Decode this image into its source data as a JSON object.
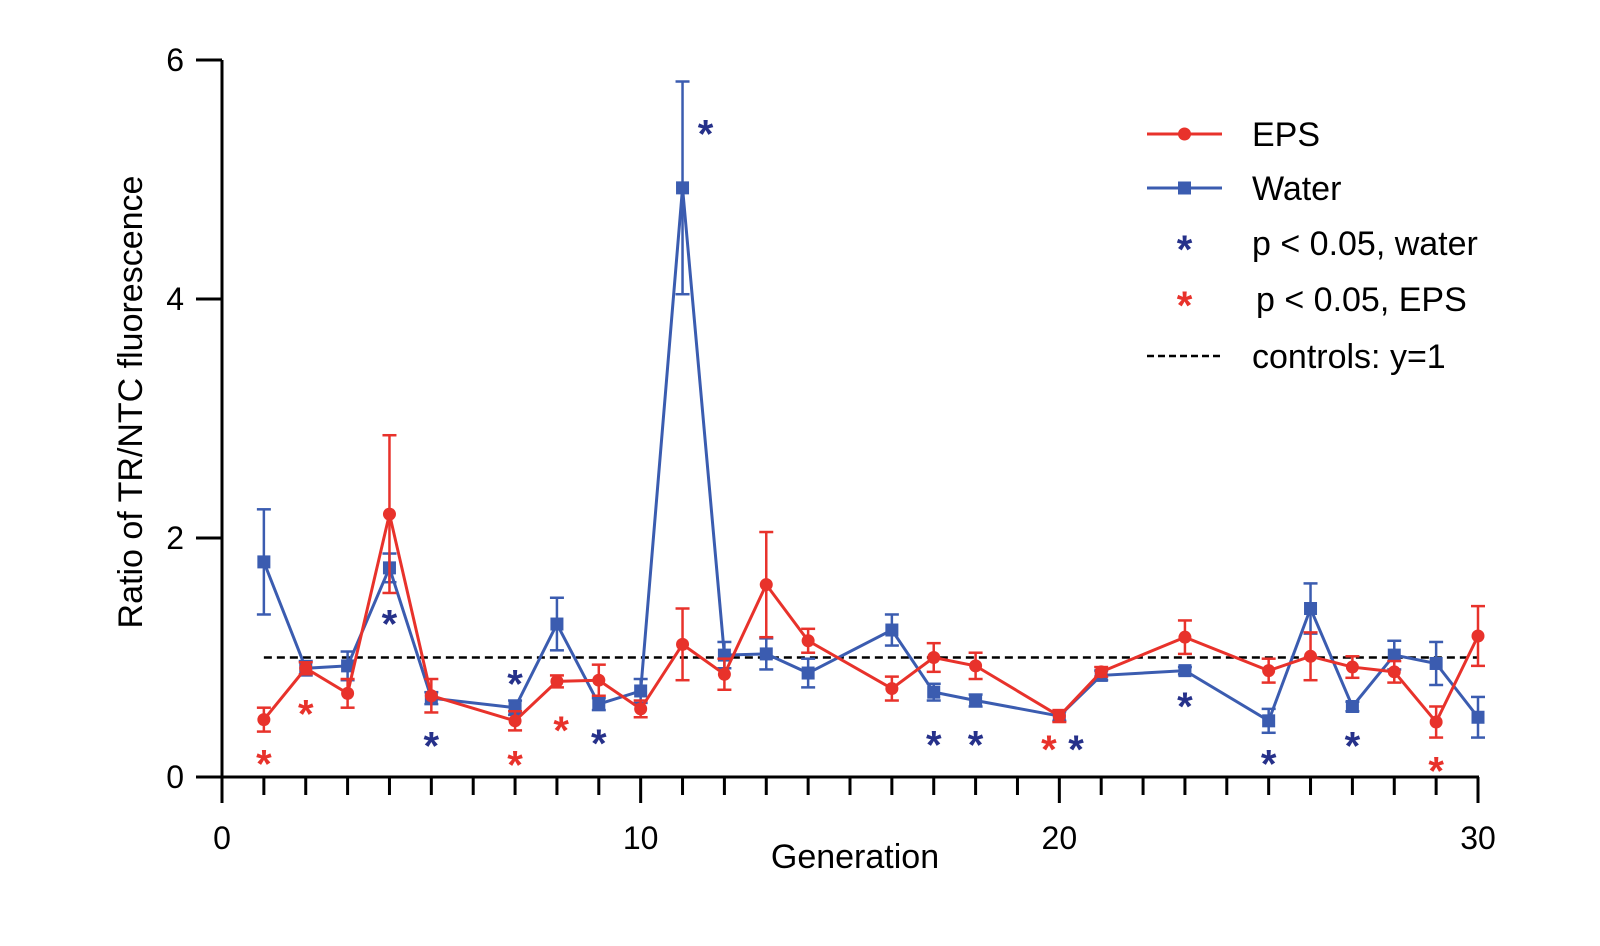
{
  "chart_data": {
    "type": "line",
    "xlabel": "Generation",
    "ylabel": "Ratio of TR/NTC fluorescence",
    "xlim": [
      0,
      30
    ],
    "ylim": [
      0,
      6
    ],
    "x_ticks": [
      0,
      10,
      20,
      30
    ],
    "y_ticks": [
      0,
      2,
      4,
      6
    ],
    "x_minor_step": 1,
    "legend_position": "top-right",
    "colors": {
      "eps": "#e8322b",
      "water": "#3b5cb0",
      "water_star": "#26318a",
      "eps_star": "#e8322b",
      "control": "#000000"
    },
    "series": [
      {
        "name": "EPS",
        "marker": "circle",
        "color": "#e8322b",
        "x": [
          1,
          2,
          3,
          4,
          5,
          7,
          8,
          9,
          10,
          11,
          12,
          13,
          14,
          16,
          17,
          18,
          20,
          21,
          23,
          25,
          26,
          27,
          28,
          29,
          30
        ],
        "y": [
          0.48,
          0.91,
          0.7,
          2.2,
          0.68,
          0.47,
          0.8,
          0.81,
          0.57,
          1.11,
          0.86,
          1.61,
          1.14,
          0.74,
          1.0,
          0.93,
          0.51,
          0.88,
          1.17,
          0.89,
          1.01,
          0.92,
          0.88,
          0.46,
          1.18
        ],
        "err": [
          0.1,
          0.05,
          0.12,
          0.66,
          0.14,
          0.08,
          0.05,
          0.13,
          0.07,
          0.3,
          0.13,
          0.44,
          0.1,
          0.1,
          0.12,
          0.11,
          0.05,
          0.04,
          0.14,
          0.1,
          0.2,
          0.09,
          0.09,
          0.13,
          0.25
        ]
      },
      {
        "name": "Water",
        "marker": "square",
        "color": "#3b5cb0",
        "x": [
          1,
          2,
          3,
          4,
          5,
          7,
          8,
          9,
          10,
          11,
          12,
          13,
          14,
          16,
          17,
          18,
          20,
          21,
          23,
          25,
          26,
          27,
          28,
          29,
          30
        ],
        "y": [
          1.8,
          0.91,
          0.93,
          1.75,
          0.66,
          0.58,
          1.28,
          0.61,
          0.72,
          4.93,
          1.02,
          1.03,
          0.87,
          1.23,
          0.71,
          0.64,
          0.51,
          0.85,
          0.89,
          0.47,
          1.41,
          0.59,
          1.02,
          0.95,
          0.5
        ],
        "err": [
          0.44,
          0.06,
          0.12,
          0.12,
          0.05,
          0.06,
          0.22,
          0.05,
          0.1,
          0.89,
          0.11,
          0.13,
          0.12,
          0.13,
          0.07,
          0.05,
          0.04,
          0.04,
          0.03,
          0.1,
          0.21,
          0.04,
          0.12,
          0.18,
          0.17
        ]
      },
      {
        "name": "controls: y=1",
        "style": "dashed",
        "color": "#000000",
        "y_constant": 1
      }
    ],
    "annotations": {
      "water_stars": [
        {
          "x": 4,
          "y": 1.35
        },
        {
          "x": 5,
          "y": 0.33
        },
        {
          "x": 7,
          "y": 0.85
        },
        {
          "x": 9,
          "y": 0.35
        },
        {
          "x": 11.55,
          "y": 5.45
        },
        {
          "x": 17,
          "y": 0.34
        },
        {
          "x": 18,
          "y": 0.34
        },
        {
          "x": 20.4,
          "y": 0.3
        },
        {
          "x": 23,
          "y": 0.66
        },
        {
          "x": 25,
          "y": 0.18
        },
        {
          "x": 27,
          "y": 0.33
        }
      ],
      "eps_stars": [
        {
          "x": 1,
          "y": 0.18
        },
        {
          "x": 2,
          "y": 0.6
        },
        {
          "x": 7,
          "y": 0.17
        },
        {
          "x": 8.1,
          "y": 0.46
        },
        {
          "x": 19.75,
          "y": 0.3
        },
        {
          "x": 29,
          "y": 0.12
        }
      ]
    }
  },
  "legend": {
    "items": [
      {
        "label": "EPS",
        "kind": "eps-line"
      },
      {
        "label": "Water",
        "kind": "water-line"
      },
      {
        "label": "p < 0.05, water",
        "kind": "water-star"
      },
      {
        "label": "p < 0.05, EPS",
        "kind": "eps-star"
      },
      {
        "label": "controls: y=1",
        "kind": "control-line"
      }
    ]
  },
  "star_glyph": "*"
}
